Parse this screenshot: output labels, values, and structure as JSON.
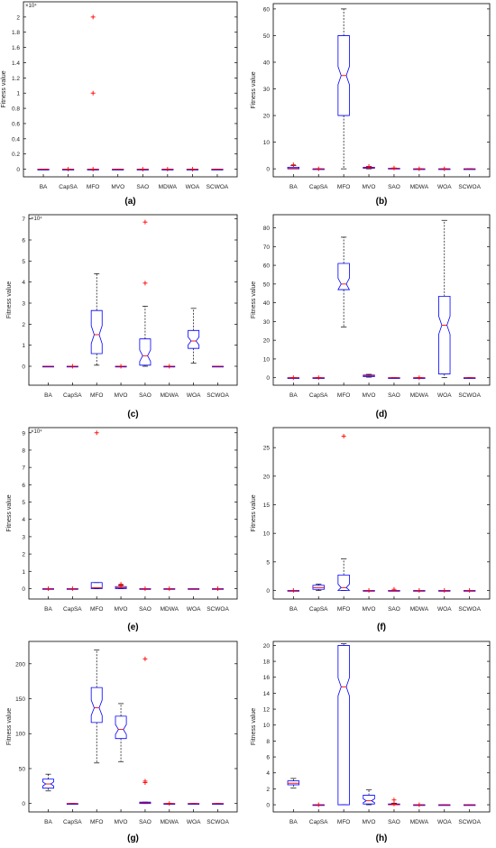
{
  "colors": {
    "box": "#0000ff",
    "median": "#ff0000",
    "whisker": "#000000",
    "outlier": "#ff0000",
    "axis": "#000000"
  },
  "chart_data": [
    {
      "panel_label": "(a)",
      "type": "boxplot",
      "ylabel": "Fitness value",
      "exponent": "×10⁴",
      "ylim": [
        -0.1,
        2.2
      ],
      "yticks": [
        0,
        0.2,
        0.4,
        0.6,
        0.8,
        1,
        1.2,
        1.4,
        1.6,
        1.8,
        2
      ],
      "categories": [
        "BA",
        "CapSA",
        "MFO",
        "MVO",
        "SAO",
        "MDWA",
        "WOA",
        "SCWOA"
      ],
      "boxes": [
        {
          "q1": 0,
          "med": 0,
          "q3": 0,
          "lo": 0,
          "hi": 0,
          "outliers": []
        },
        {
          "q1": 0,
          "med": 0,
          "q3": 0,
          "lo": 0,
          "hi": 0,
          "outliers": [
            0
          ]
        },
        {
          "q1": 0,
          "med": 0,
          "q3": 0,
          "lo": 0,
          "hi": 0,
          "outliers": [
            0,
            1.0,
            2.0
          ]
        },
        {
          "q1": 0,
          "med": 0,
          "q3": 0,
          "lo": 0,
          "hi": 0,
          "outliers": []
        },
        {
          "q1": 0,
          "med": 0,
          "q3": 0,
          "lo": 0,
          "hi": 0,
          "outliers": [
            0
          ]
        },
        {
          "q1": 0,
          "med": 0,
          "q3": 0,
          "lo": 0,
          "hi": 0,
          "outliers": [
            0
          ]
        },
        {
          "q1": 0,
          "med": 0,
          "q3": 0,
          "lo": 0,
          "hi": 0,
          "outliers": [
            0
          ]
        },
        {
          "q1": 0,
          "med": 0,
          "q3": 0,
          "lo": 0,
          "hi": 0,
          "outliers": []
        }
      ]
    },
    {
      "panel_label": "(b)",
      "type": "boxplot",
      "ylabel": "Fitness value",
      "exponent": "",
      "ylim": [
        -3,
        62
      ],
      "yticks": [
        0,
        10,
        20,
        30,
        40,
        50,
        60
      ],
      "categories": [
        "BA",
        "CapSA",
        "MFO",
        "MVO",
        "SAO",
        "MDWA",
        "WOA",
        "SCWOA"
      ],
      "boxes": [
        {
          "q1": 0,
          "med": 0.2,
          "q3": 0.6,
          "lo": 0,
          "hi": 1.2,
          "outliers": [
            1.5
          ]
        },
        {
          "q1": 0,
          "med": 0,
          "q3": 0,
          "lo": 0,
          "hi": 0,
          "outliers": [
            0
          ]
        },
        {
          "q1": 20,
          "med": 35,
          "q3": 50,
          "lo": 0,
          "hi": 60,
          "notch": true,
          "outliers": []
        },
        {
          "q1": 0.2,
          "med": 0.4,
          "q3": 0.6,
          "lo": 0,
          "hi": 0.9,
          "outliers": [
            0.9
          ]
        },
        {
          "q1": 0,
          "med": 0.1,
          "q3": 0.2,
          "lo": 0,
          "hi": 0.3,
          "outliers": [
            0.3
          ]
        },
        {
          "q1": 0,
          "med": 0,
          "q3": 0,
          "lo": 0,
          "hi": 0,
          "outliers": [
            0
          ]
        },
        {
          "q1": 0,
          "med": 0,
          "q3": 0,
          "lo": 0,
          "hi": 0,
          "outliers": [
            0
          ]
        },
        {
          "q1": 0,
          "med": 0,
          "q3": 0,
          "lo": 0,
          "hi": 0,
          "outliers": []
        }
      ]
    },
    {
      "panel_label": "(c)",
      "type": "boxplot",
      "ylabel": "Fitness value",
      "exponent": "×10⁴",
      "ylim": [
        -0.9,
        7.2
      ],
      "yticks": [
        0,
        1,
        2,
        3,
        4,
        5,
        6,
        7
      ],
      "categories": [
        "BA",
        "CapSA",
        "MFO",
        "MVO",
        "SAO",
        "MDWA",
        "WOA",
        "SCWOA"
      ],
      "boxes": [
        {
          "q1": 0,
          "med": 0,
          "q3": 0,
          "lo": 0,
          "hi": 0,
          "outliers": []
        },
        {
          "q1": 0,
          "med": 0,
          "q3": 0,
          "lo": 0,
          "hi": 0,
          "outliers": [
            0
          ]
        },
        {
          "q1": 0.6,
          "med": 1.5,
          "q3": 2.65,
          "lo": 0.05,
          "hi": 4.4,
          "notch": true,
          "outliers": []
        },
        {
          "q1": 0,
          "med": 0,
          "q3": 0,
          "lo": 0,
          "hi": 0,
          "outliers": [
            0
          ]
        },
        {
          "q1": 0.05,
          "med": 0.5,
          "q3": 1.3,
          "lo": 0,
          "hi": 2.85,
          "notch": true,
          "outliers": [
            3.95,
            6.85
          ]
        },
        {
          "q1": 0,
          "med": 0,
          "q3": 0,
          "lo": 0,
          "hi": 0,
          "outliers": [
            0
          ]
        },
        {
          "q1": 0.85,
          "med": 1.2,
          "q3": 1.7,
          "lo": 0.15,
          "hi": 2.75,
          "notch": true,
          "outliers": []
        },
        {
          "q1": 0,
          "med": 0,
          "q3": 0,
          "lo": 0,
          "hi": 0,
          "outliers": []
        }
      ]
    },
    {
      "panel_label": "(d)",
      "type": "boxplot",
      "ylabel": "Fitness value",
      "exponent": "",
      "ylim": [
        -4,
        87
      ],
      "yticks": [
        0,
        10,
        20,
        30,
        40,
        50,
        60,
        70,
        80
      ],
      "categories": [
        "BA",
        "CapSA",
        "MFO",
        "MVO",
        "SAO",
        "MDWA",
        "WOA",
        "SCWOA"
      ],
      "boxes": [
        {
          "q1": 0,
          "med": 0,
          "q3": 0,
          "lo": 0,
          "hi": 0,
          "outliers": [
            0
          ]
        },
        {
          "q1": 0,
          "med": 0,
          "q3": 0,
          "lo": 0,
          "hi": 0,
          "outliers": [
            0
          ]
        },
        {
          "q1": 47,
          "med": 50,
          "q3": 61,
          "lo": 27,
          "hi": 75,
          "notch": true,
          "outliers": []
        },
        {
          "q1": 0.6,
          "med": 1,
          "q3": 1.4,
          "lo": 0.3,
          "hi": 1.8,
          "outliers": []
        },
        {
          "q1": 0,
          "med": 0,
          "q3": 0,
          "lo": 0,
          "hi": 0,
          "outliers": []
        },
        {
          "q1": 0,
          "med": 0,
          "q3": 0,
          "lo": 0,
          "hi": 0,
          "outliers": [
            0
          ]
        },
        {
          "q1": 2,
          "med": 28,
          "q3": 43.5,
          "lo": 0,
          "hi": 84,
          "notch": true,
          "outliers": []
        },
        {
          "q1": 0,
          "med": 0,
          "q3": 0,
          "lo": 0,
          "hi": 0,
          "outliers": []
        }
      ]
    },
    {
      "panel_label": "(e)",
      "type": "boxplot",
      "ylabel": "Fitness value",
      "exponent": "×10⁴",
      "ylim": [
        -0.6,
        9.3
      ],
      "yticks": [
        0,
        1,
        2,
        3,
        4,
        5,
        6,
        7,
        8,
        9
      ],
      "categories": [
        "BA",
        "CapSA",
        "MFO",
        "MVO",
        "SAO",
        "MDWA",
        "WOA",
        "SCWOA"
      ],
      "boxes": [
        {
          "q1": 0,
          "med": 0,
          "q3": 0,
          "lo": 0,
          "hi": 0,
          "outliers": [
            0
          ]
        },
        {
          "q1": 0,
          "med": 0,
          "q3": 0,
          "lo": 0,
          "hi": 0,
          "outliers": [
            0
          ]
        },
        {
          "q1": 0,
          "med": 0.05,
          "q3": 0.35,
          "lo": 0,
          "hi": 0.35,
          "outliers": [
            9.0
          ]
        },
        {
          "q1": 0,
          "med": 0.05,
          "q3": 0.12,
          "lo": 0,
          "hi": 0.2,
          "outliers": [
            0.25,
            0.15
          ]
        },
        {
          "q1": 0,
          "med": 0,
          "q3": 0,
          "lo": 0,
          "hi": 0,
          "outliers": [
            0
          ]
        },
        {
          "q1": 0,
          "med": 0,
          "q3": 0,
          "lo": 0,
          "hi": 0,
          "outliers": [
            0
          ]
        },
        {
          "q1": 0,
          "med": 0,
          "q3": 0,
          "lo": 0,
          "hi": 0,
          "outliers": []
        },
        {
          "q1": 0,
          "med": 0,
          "q3": 0,
          "lo": 0,
          "hi": 0,
          "outliers": [
            0
          ]
        }
      ]
    },
    {
      "panel_label": "(f)",
      "type": "boxplot",
      "ylabel": "Fitness value",
      "exponent": "",
      "ylim": [
        -1.5,
        28.5
      ],
      "yticks": [
        0,
        5,
        10,
        15,
        20,
        25
      ],
      "categories": [
        "BA",
        "CapSA",
        "MFO",
        "MVO",
        "SAO",
        "MDWA",
        "WOA",
        "SCWOA"
      ],
      "boxes": [
        {
          "q1": 0,
          "med": 0,
          "q3": 0,
          "lo": 0,
          "hi": 0,
          "outliers": [
            0
          ]
        },
        {
          "q1": 0.2,
          "med": 0.5,
          "q3": 0.9,
          "lo": 0,
          "hi": 1.1,
          "outliers": []
        },
        {
          "q1": 0,
          "med": 0.5,
          "q3": 2.7,
          "lo": 0,
          "hi": 5.5,
          "notch": true,
          "outliers": [
            27
          ]
        },
        {
          "q1": 0,
          "med": 0,
          "q3": 0,
          "lo": 0,
          "hi": 0,
          "outliers": [
            0
          ]
        },
        {
          "q1": 0,
          "med": 0,
          "q3": 0,
          "lo": 0,
          "hi": 0,
          "outliers": [
            0.2
          ]
        },
        {
          "q1": 0,
          "med": 0,
          "q3": 0,
          "lo": 0,
          "hi": 0,
          "outliers": [
            0
          ]
        },
        {
          "q1": 0,
          "med": 0,
          "q3": 0,
          "lo": 0,
          "hi": 0,
          "outliers": [
            0
          ]
        },
        {
          "q1": 0,
          "med": 0,
          "q3": 0,
          "lo": 0,
          "hi": 0,
          "outliers": [
            0
          ]
        }
      ]
    },
    {
      "panel_label": "(g)",
      "type": "boxplot",
      "ylabel": "Fitness value",
      "exponent": "",
      "ylim": [
        -12,
        232
      ],
      "yticks": [
        0,
        50,
        100,
        150,
        200
      ],
      "categories": [
        "BA",
        "CapSA",
        "MFO",
        "MVO",
        "SAO",
        "MDWA",
        "WOA",
        "SCWOA"
      ],
      "boxes": [
        {
          "q1": 22,
          "med": 28,
          "q3": 35,
          "lo": 18,
          "hi": 42,
          "notch": true,
          "outliers": []
        },
        {
          "q1": 0,
          "med": 0,
          "q3": 0,
          "lo": 0,
          "hi": 0,
          "outliers": []
        },
        {
          "q1": 116,
          "med": 137,
          "q3": 166,
          "lo": 58,
          "hi": 220,
          "notch": true,
          "outliers": []
        },
        {
          "q1": 93,
          "med": 106,
          "q3": 125,
          "lo": 60,
          "hi": 143,
          "notch": true,
          "outliers": []
        },
        {
          "q1": 0,
          "med": 1,
          "q3": 2,
          "lo": 0,
          "hi": 2,
          "outliers": [
            30,
            32,
            207
          ]
        },
        {
          "q1": 0,
          "med": 0,
          "q3": 0,
          "lo": 0,
          "hi": 0,
          "outliers": [
            0
          ]
        },
        {
          "q1": 0,
          "med": 0,
          "q3": 0,
          "lo": 0,
          "hi": 0,
          "outliers": []
        },
        {
          "q1": 0,
          "med": 0,
          "q3": 0,
          "lo": 0,
          "hi": 0,
          "outliers": []
        }
      ]
    },
    {
      "panel_label": "(h)",
      "type": "boxplot",
      "ylabel": "Fitness value",
      "exponent": "",
      "ylim": [
        -0.9,
        20.5
      ],
      "yticks": [
        0,
        2,
        4,
        6,
        8,
        10,
        12,
        14,
        16,
        18,
        20
      ],
      "categories": [
        "BA",
        "CapSA",
        "MFO",
        "MVO",
        "SAO",
        "MDWA",
        "WOA",
        "SCWOA"
      ],
      "boxes": [
        {
          "q1": 2.5,
          "med": 2.7,
          "q3": 3.0,
          "lo": 2.1,
          "hi": 3.3,
          "notch": true,
          "outliers": []
        },
        {
          "q1": 0,
          "med": 0,
          "q3": 0,
          "lo": 0,
          "hi": 0,
          "outliers": [
            0
          ]
        },
        {
          "q1": 0,
          "med": 14.8,
          "q3": 20,
          "lo": 0,
          "hi": 20.2,
          "notch": true,
          "outliers": []
        },
        {
          "q1": 0.1,
          "med": 0.5,
          "q3": 1.2,
          "lo": 0,
          "hi": 1.9,
          "notch": true,
          "outliers": []
        },
        {
          "q1": 0,
          "med": 0,
          "q3": 0.1,
          "lo": 0,
          "hi": 0.2,
          "outliers": [
            0.6,
            0.1
          ]
        },
        {
          "q1": 0,
          "med": 0,
          "q3": 0,
          "lo": 0,
          "hi": 0,
          "outliers": [
            0
          ]
        },
        {
          "q1": 0,
          "med": 0,
          "q3": 0,
          "lo": 0,
          "hi": 0,
          "outliers": []
        },
        {
          "q1": 0,
          "med": 0,
          "q3": 0,
          "lo": 0,
          "hi": 0,
          "outliers": []
        }
      ]
    }
  ]
}
